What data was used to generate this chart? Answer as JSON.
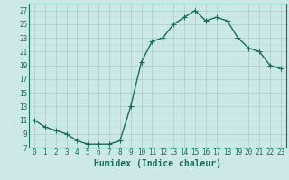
{
  "x": [
    0,
    1,
    2,
    3,
    4,
    5,
    6,
    7,
    8,
    9,
    10,
    11,
    12,
    13,
    14,
    15,
    16,
    17,
    18,
    19,
    20,
    21,
    22,
    23
  ],
  "y": [
    11,
    10,
    9.5,
    9,
    8,
    7.5,
    7.5,
    7.5,
    8,
    13,
    19.5,
    22.5,
    23,
    25,
    26,
    27,
    25.5,
    26,
    25.5,
    23,
    21.5,
    21,
    19,
    18.5
  ],
  "line_color": "#1a6b5a",
  "bg_color": "#cce8e8",
  "grid_color_major": "#aacccc",
  "grid_color_minor": "#bbdddd",
  "xlabel": "Humidex (Indice chaleur)",
  "ylim": [
    7,
    28
  ],
  "yticks": [
    7,
    9,
    11,
    13,
    15,
    17,
    19,
    21,
    23,
    25,
    27
  ],
  "xlim": [
    -0.5,
    23.5
  ],
  "xticks": [
    0,
    1,
    2,
    3,
    4,
    5,
    6,
    7,
    8,
    9,
    10,
    11,
    12,
    13,
    14,
    15,
    16,
    17,
    18,
    19,
    20,
    21,
    22,
    23
  ],
  "marker": "+",
  "marker_size": 4,
  "line_width": 1.0,
  "font_color": "#1a6b5a",
  "tick_fontsize": 5.5,
  "xlabel_fontsize": 7.0
}
